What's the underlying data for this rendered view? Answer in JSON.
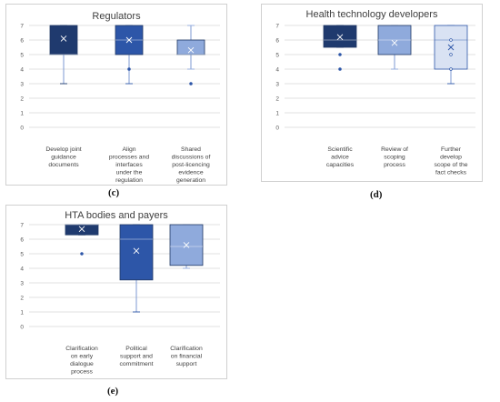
{
  "chart_data": [
    {
      "type": "box",
      "title": "Regulators",
      "panel_label": "(c)",
      "ylim": [
        0,
        7
      ],
      "yticks": [
        0,
        1,
        2,
        3,
        4,
        5,
        6,
        7
      ],
      "grid": true,
      "categories": [
        "Develop joint guidance documents",
        "Align processes and interfaces under the regulation",
        "Shared discussions of post-licencing evidence generation"
      ],
      "boxes": [
        {
          "min": 3,
          "q1": 5,
          "median": 5,
          "q3": 7,
          "max": 7,
          "mean": 6.1,
          "outliers": [],
          "color": "#1f3a6e"
        },
        {
          "min": 3,
          "q1": 5,
          "median": 6,
          "q3": 7,
          "max": 7,
          "mean": 6.0,
          "outliers": [
            4
          ],
          "color": "#2d56a8"
        },
        {
          "min": 4,
          "q1": 5,
          "median": 5,
          "q3": 6,
          "max": 7,
          "mean": 5.3,
          "outliers": [
            3
          ],
          "color": "#8faadc"
        }
      ]
    },
    {
      "type": "box",
      "title": "Health technology developers",
      "panel_label": "(d)",
      "ylim": [
        0,
        7
      ],
      "yticks": [
        0,
        1,
        2,
        3,
        4,
        5,
        6,
        7
      ],
      "grid": true,
      "categories": [
        "Scientific advice capacities",
        "Review of scoping process",
        "Further develop scope of the fact checks"
      ],
      "boxes": [
        {
          "min": 5.5,
          "q1": 5.5,
          "median": 6,
          "q3": 7,
          "max": 7,
          "mean": 6.2,
          "outliers": [
            4,
            5
          ],
          "color": "#1f3a6e"
        },
        {
          "min": 4,
          "q1": 5,
          "median": 6,
          "q3": 7,
          "max": 7,
          "mean": 5.8,
          "outliers": [],
          "color": "#8faadc"
        },
        {
          "min": 3,
          "q1": 4,
          "median": 6,
          "q3": 7,
          "max": 7,
          "mean": 5.5,
          "outliers": [
            4,
            5,
            6
          ],
          "color": "#d9e2f3"
        }
      ]
    },
    {
      "type": "box",
      "title": "HTA bodies and payers",
      "panel_label": "(e)",
      "ylim": [
        0,
        7
      ],
      "yticks": [
        0,
        1,
        2,
        3,
        4,
        5,
        6,
        7
      ],
      "grid": true,
      "categories": [
        "Clarification on early dialogue process",
        "Political support and commitment",
        "Clarification on financial support"
      ],
      "boxes": [
        {
          "min": 6.3,
          "q1": 6.3,
          "median": 7,
          "q3": 7,
          "max": 7,
          "mean": 6.7,
          "outliers": [
            5
          ],
          "color": "#1f3a6e"
        },
        {
          "min": 1,
          "q1": 3.2,
          "median": 6,
          "q3": 7,
          "max": 7,
          "mean": 5.2,
          "outliers": [],
          "color": "#2d56a8"
        },
        {
          "min": 4,
          "q1": 4.2,
          "median": 5.5,
          "q3": 7,
          "max": 7,
          "mean": 5.6,
          "outliers": [],
          "color": "#8faadc"
        }
      ]
    }
  ]
}
